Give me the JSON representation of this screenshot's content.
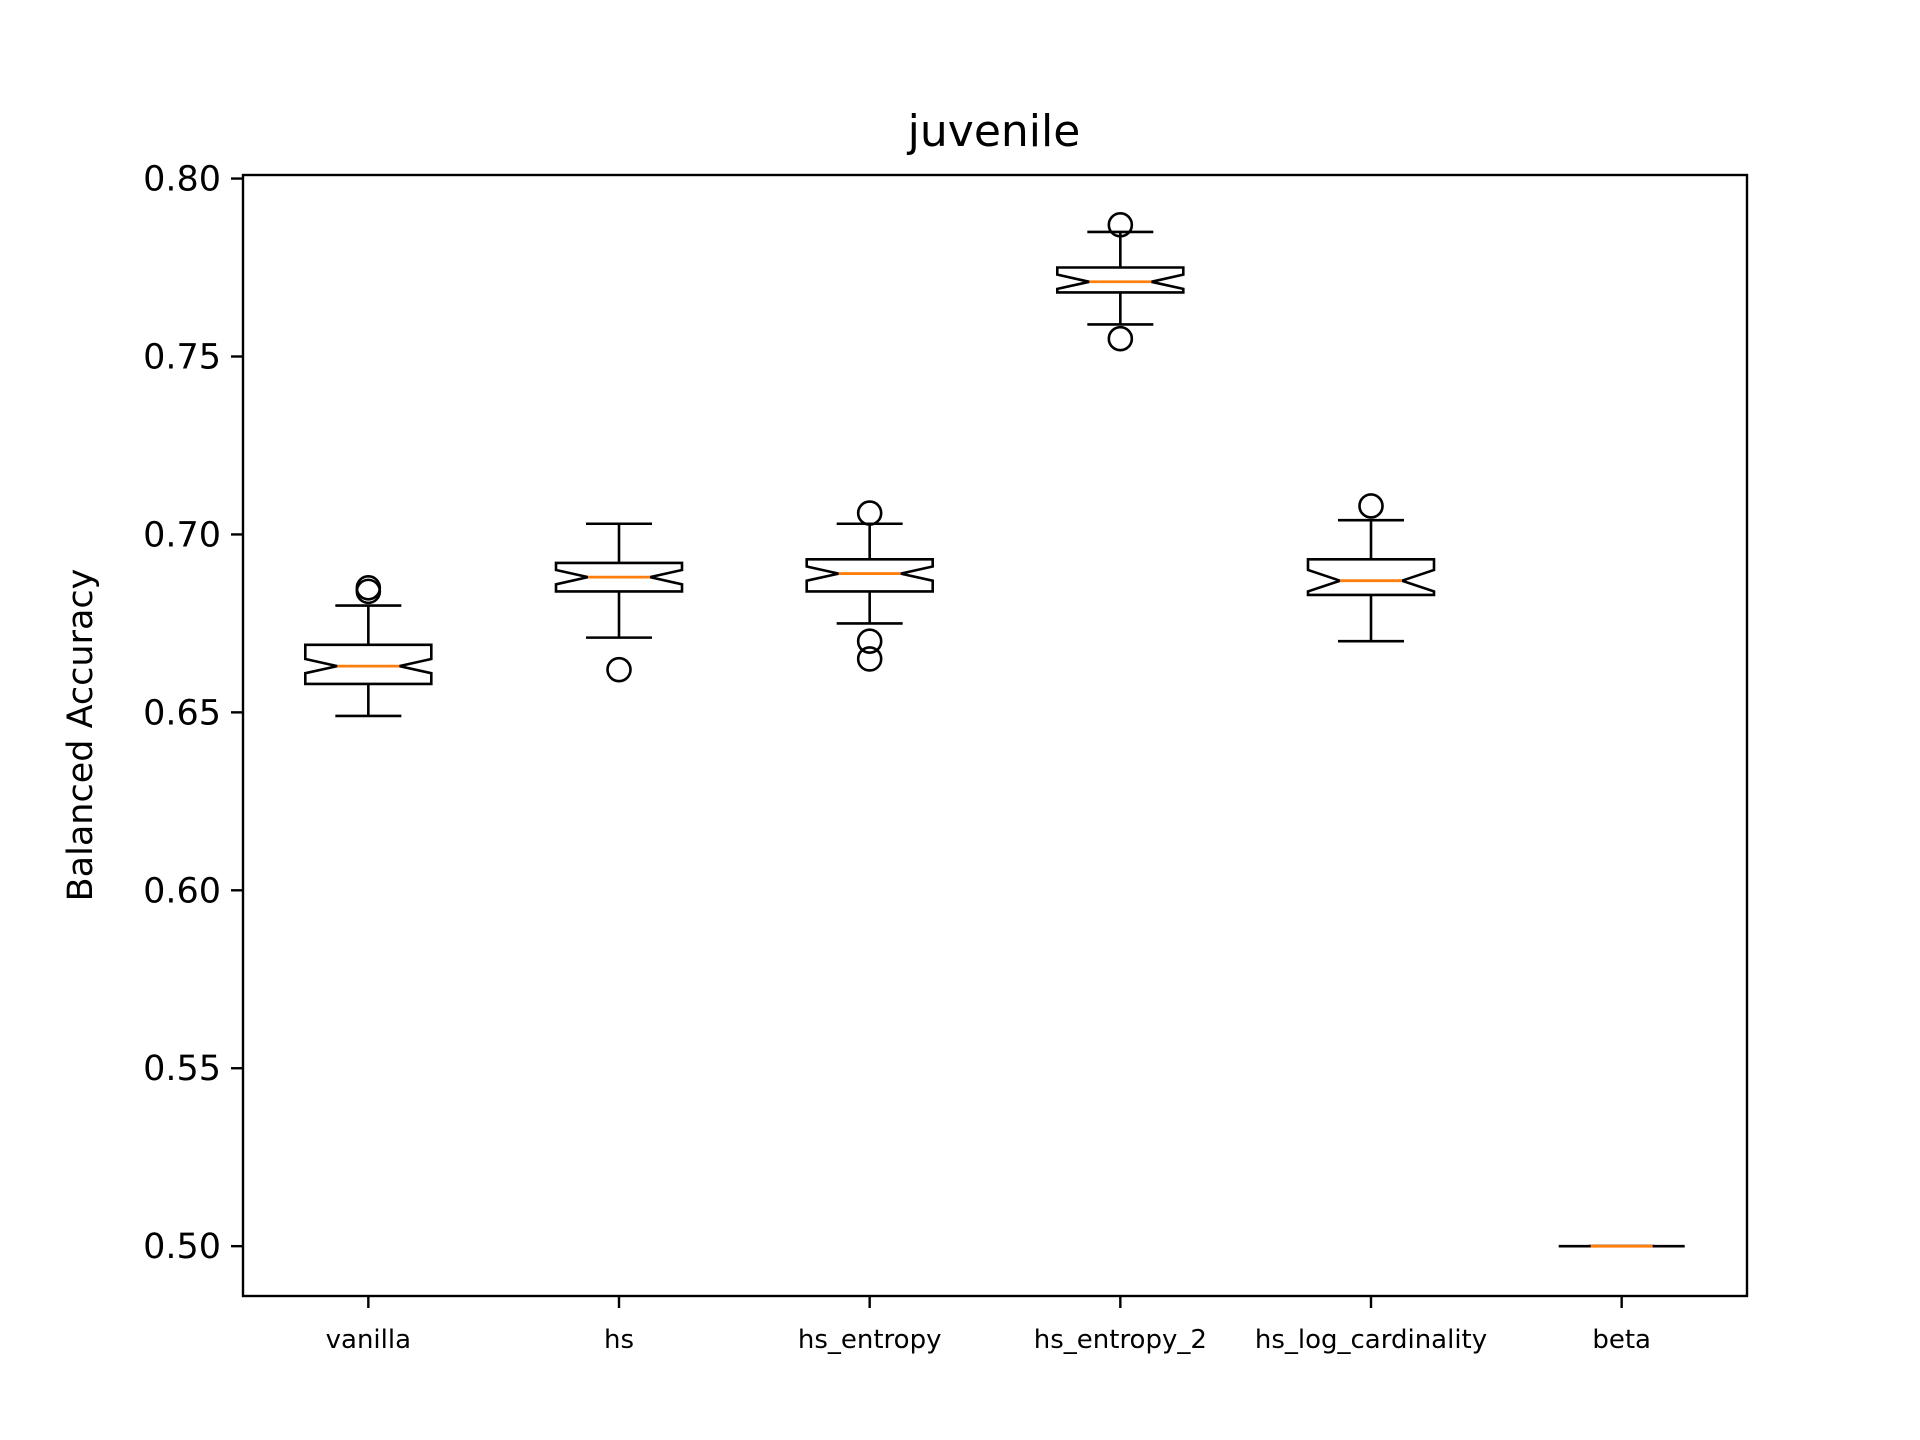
{
  "chart_data": {
    "type": "box",
    "title": "juvenile",
    "xlabel": "",
    "ylabel": "Balanced Accuracy",
    "ylim": [
      0.486,
      0.801
    ],
    "yticks": [
      "0.50",
      "0.55",
      "0.60",
      "0.65",
      "0.70",
      "0.75",
      "0.80"
    ],
    "grid": false,
    "notched": true,
    "colors": {
      "box": "#000000",
      "median": "#ff7f0e",
      "background": "#ffffff"
    },
    "categories": [
      "vanilla",
      "hs",
      "hs_entropy",
      "hs_entropy_2",
      "hs_log_cardinality",
      "beta"
    ],
    "boxes": [
      {
        "label": "vanilla",
        "whisker_low": 0.649,
        "q1": 0.658,
        "median": 0.663,
        "q3": 0.669,
        "whisker_high": 0.68,
        "notch_low": 0.661,
        "notch_high": 0.665,
        "outliers": [
          0.684,
          0.685
        ]
      },
      {
        "label": "hs",
        "whisker_low": 0.671,
        "q1": 0.684,
        "median": 0.688,
        "q3": 0.692,
        "whisker_high": 0.703,
        "notch_low": 0.686,
        "notch_high": 0.69,
        "outliers": [
          0.662
        ]
      },
      {
        "label": "hs_entropy",
        "whisker_low": 0.675,
        "q1": 0.684,
        "median": 0.689,
        "q3": 0.693,
        "whisker_high": 0.703,
        "notch_low": 0.687,
        "notch_high": 0.691,
        "outliers": [
          0.706,
          0.67,
          0.665
        ]
      },
      {
        "label": "hs_entropy_2",
        "whisker_low": 0.759,
        "q1": 0.768,
        "median": 0.771,
        "q3": 0.775,
        "whisker_high": 0.785,
        "notch_low": 0.769,
        "notch_high": 0.773,
        "outliers": [
          0.787,
          0.755
        ]
      },
      {
        "label": "hs_log_cardinality",
        "whisker_low": 0.67,
        "q1": 0.683,
        "median": 0.687,
        "q3": 0.693,
        "whisker_high": 0.704,
        "notch_low": 0.684,
        "notch_high": 0.69,
        "outliers": [
          0.708
        ]
      },
      {
        "label": "beta",
        "whisker_low": 0.5,
        "q1": 0.5,
        "median": 0.5,
        "q3": 0.5,
        "whisker_high": 0.5,
        "notch_low": 0.5,
        "notch_high": 0.5,
        "outliers": []
      }
    ]
  }
}
